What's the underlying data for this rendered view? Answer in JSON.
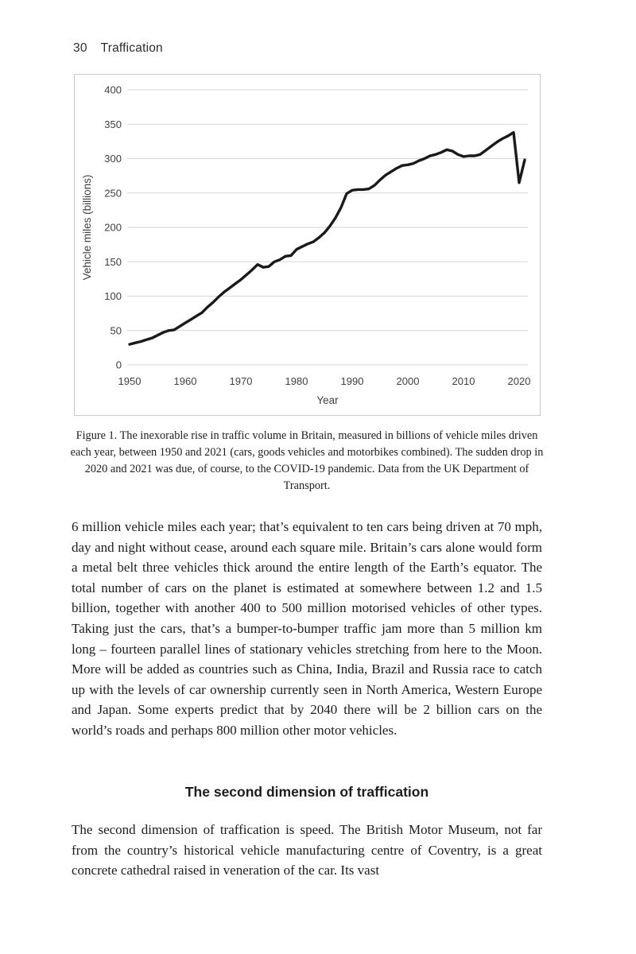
{
  "header": {
    "page_number": "30",
    "title": "Traffication"
  },
  "figure": {
    "caption": "Figure 1. The inexorable rise in traffic volume in Britain, measured in billions of vehicle miles driven each year, between 1950 and 2021 (cars, goods vehicles and motorbikes combined). The sudden drop in 2020 and 2021 was due, of course, to the COVID-19 pandemic. Data from the UK Department of Transport."
  },
  "chart_data": {
    "type": "line",
    "title": "",
    "xlabel": "Year",
    "ylabel": "Vehicle miles (billions)",
    "x_ticks": [
      1950,
      1960,
      1970,
      1980,
      1990,
      2000,
      2010,
      2020
    ],
    "y_ticks": [
      0,
      50,
      100,
      150,
      200,
      250,
      300,
      350,
      400
    ],
    "xlim": [
      1950,
      2021
    ],
    "ylim": [
      0,
      400
    ],
    "grid": true,
    "legend_position": "none",
    "line_color": "#1a1a1a",
    "grid_color": "#d6d6d6",
    "series": [
      {
        "name": "Vehicle miles (billions)",
        "x": [
          1950,
          1951,
          1952,
          1953,
          1954,
          1955,
          1956,
          1957,
          1958,
          1959,
          1960,
          1961,
          1962,
          1963,
          1964,
          1965,
          1966,
          1967,
          1968,
          1969,
          1970,
          1971,
          1972,
          1973,
          1974,
          1975,
          1976,
          1977,
          1978,
          1979,
          1980,
          1981,
          1982,
          1983,
          1984,
          1985,
          1986,
          1987,
          1988,
          1989,
          1990,
          1991,
          1992,
          1993,
          1994,
          1995,
          1996,
          1997,
          1998,
          1999,
          2000,
          2001,
          2002,
          2003,
          2004,
          2005,
          2006,
          2007,
          2008,
          2009,
          2010,
          2011,
          2012,
          2013,
          2014,
          2015,
          2016,
          2017,
          2018,
          2019,
          2020,
          2021
        ],
        "y": [
          30,
          32,
          34,
          36.5,
          39,
          43,
          47,
          50,
          51,
          56,
          61,
          66,
          71,
          76,
          84,
          91,
          99,
          106,
          112,
          118,
          124,
          131,
          138,
          146,
          142,
          143,
          150,
          153,
          158,
          159,
          168,
          172,
          176,
          179,
          185,
          192,
          202,
          214,
          229,
          249,
          254,
          255,
          255,
          256,
          261,
          269,
          276,
          281,
          286,
          290,
          291,
          293,
          297,
          300,
          304,
          306,
          309,
          313,
          311,
          306,
          303,
          304,
          304,
          306,
          312,
          318,
          324,
          329,
          333,
          338,
          265,
          298
        ]
      }
    ]
  },
  "body": {
    "paragraph_1": "6 million vehicle miles each year; that’s equivalent to ten cars being driven at 70 mph, day and night without cease, around each square mile. Britain’s cars alone would form a metal belt three vehicles thick around the entire length of the Earth’s equator. The total number of cars on the planet is estimated at somewhere between 1.2 and 1.5 billion, together with another 400 to 500 million motorised vehicles of other types. Taking just the cars, that’s a bumper-to-bumper traffic jam more than 5 million km long – fourteen parallel lines of stationary vehicles stretching from here to the Moon. More will be added as countries such as China, India, Brazil and Russia race to catch up with the levels of car ownership currently seen in North America, Western Europe and Japan. Some experts predict that by 2040 there will be 2 billion cars on the world’s roads and perhaps 800 million other motor vehicles.",
    "section_heading": "The second dimension of traffication",
    "paragraph_2": "The second dimension of traffication is speed. The British Motor Museum, not far from the country’s historical vehicle manufacturing centre of Coventry, is a great concrete cathedral raised in veneration of the car. Its vast"
  }
}
